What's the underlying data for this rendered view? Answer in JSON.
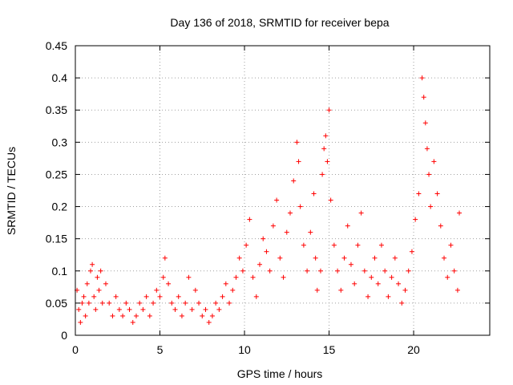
{
  "chart_data": {
    "type": "scatter",
    "title": "Day 136 of 2018, SRMTID for receiver bepa",
    "xlabel": "GPS time / hours",
    "ylabel": "SRMTID / TECUs",
    "xlim": [
      0,
      24.5
    ],
    "ylim": [
      0,
      0.45
    ],
    "xticks": [
      0,
      5,
      10,
      15,
      20
    ],
    "xtick_labels": [
      "0",
      "5",
      "10",
      "15",
      "20"
    ],
    "yticks": [
      0,
      0.05,
      0.1,
      0.15,
      0.2,
      0.25,
      0.3,
      0.35,
      0.4,
      0.45
    ],
    "ytick_labels": [
      "0",
      "0.05",
      "0.1",
      "0.15",
      "0.2",
      "0.25",
      "0.3",
      "0.35",
      "0.4",
      "0.45"
    ],
    "grid": true,
    "marker": "plus",
    "color": "#ff0000",
    "series": [
      {
        "name": "SRMTID",
        "points": [
          [
            0.1,
            0.07
          ],
          [
            0.2,
            0.04
          ],
          [
            0.3,
            0.02
          ],
          [
            0.4,
            0.05
          ],
          [
            0.5,
            0.06
          ],
          [
            0.6,
            0.03
          ],
          [
            0.7,
            0.08
          ],
          [
            0.8,
            0.05
          ],
          [
            0.9,
            0.1
          ],
          [
            1.0,
            0.11
          ],
          [
            1.1,
            0.06
          ],
          [
            1.2,
            0.04
          ],
          [
            1.3,
            0.09
          ],
          [
            1.4,
            0.07
          ],
          [
            1.5,
            0.1
          ],
          [
            1.6,
            0.05
          ],
          [
            1.8,
            0.08
          ],
          [
            2.0,
            0.05
          ],
          [
            2.2,
            0.03
          ],
          [
            2.4,
            0.06
          ],
          [
            2.6,
            0.04
          ],
          [
            2.8,
            0.03
          ],
          [
            3.0,
            0.05
          ],
          [
            3.2,
            0.04
          ],
          [
            3.4,
            0.02
          ],
          [
            3.6,
            0.03
          ],
          [
            3.8,
            0.05
          ],
          [
            4.0,
            0.04
          ],
          [
            4.2,
            0.06
          ],
          [
            4.4,
            0.03
          ],
          [
            4.6,
            0.05
          ],
          [
            4.8,
            0.07
          ],
          [
            5.0,
            0.06
          ],
          [
            5.2,
            0.09
          ],
          [
            5.3,
            0.12
          ],
          [
            5.5,
            0.08
          ],
          [
            5.7,
            0.05
          ],
          [
            5.9,
            0.04
          ],
          [
            6.1,
            0.06
          ],
          [
            6.3,
            0.03
          ],
          [
            6.5,
            0.05
          ],
          [
            6.7,
            0.09
          ],
          [
            6.9,
            0.04
          ],
          [
            7.1,
            0.07
          ],
          [
            7.3,
            0.05
          ],
          [
            7.5,
            0.03
          ],
          [
            7.7,
            0.04
          ],
          [
            7.9,
            0.02
          ],
          [
            8.1,
            0.03
          ],
          [
            8.3,
            0.05
          ],
          [
            8.5,
            0.04
          ],
          [
            8.7,
            0.06
          ],
          [
            8.9,
            0.08
          ],
          [
            9.1,
            0.05
          ],
          [
            9.3,
            0.07
          ],
          [
            9.5,
            0.09
          ],
          [
            9.7,
            0.12
          ],
          [
            9.9,
            0.1
          ],
          [
            10.1,
            0.14
          ],
          [
            10.3,
            0.18
          ],
          [
            10.5,
            0.09
          ],
          [
            10.7,
            0.06
          ],
          [
            10.9,
            0.11
          ],
          [
            11.1,
            0.15
          ],
          [
            11.3,
            0.13
          ],
          [
            11.5,
            0.1
          ],
          [
            11.7,
            0.17
          ],
          [
            11.9,
            0.21
          ],
          [
            12.1,
            0.12
          ],
          [
            12.3,
            0.09
          ],
          [
            12.5,
            0.16
          ],
          [
            12.7,
            0.19
          ],
          [
            12.9,
            0.24
          ],
          [
            13.1,
            0.3
          ],
          [
            13.2,
            0.27
          ],
          [
            13.3,
            0.2
          ],
          [
            13.5,
            0.14
          ],
          [
            13.7,
            0.1
          ],
          [
            13.9,
            0.16
          ],
          [
            14.1,
            0.22
          ],
          [
            14.2,
            0.12
          ],
          [
            14.3,
            0.07
          ],
          [
            14.5,
            0.1
          ],
          [
            14.6,
            0.25
          ],
          [
            14.7,
            0.29
          ],
          [
            14.8,
            0.31
          ],
          [
            14.9,
            0.27
          ],
          [
            15.0,
            0.35
          ],
          [
            15.1,
            0.21
          ],
          [
            15.3,
            0.14
          ],
          [
            15.5,
            0.1
          ],
          [
            15.7,
            0.07
          ],
          [
            15.9,
            0.12
          ],
          [
            16.1,
            0.17
          ],
          [
            16.3,
            0.11
          ],
          [
            16.5,
            0.08
          ],
          [
            16.7,
            0.14
          ],
          [
            16.9,
            0.19
          ],
          [
            17.1,
            0.1
          ],
          [
            17.3,
            0.06
          ],
          [
            17.5,
            0.09
          ],
          [
            17.7,
            0.12
          ],
          [
            17.9,
            0.08
          ],
          [
            18.1,
            0.14
          ],
          [
            18.3,
            0.1
          ],
          [
            18.5,
            0.06
          ],
          [
            18.7,
            0.09
          ],
          [
            18.9,
            0.12
          ],
          [
            19.1,
            0.08
          ],
          [
            19.3,
            0.05
          ],
          [
            19.5,
            0.07
          ],
          [
            19.7,
            0.1
          ],
          [
            19.9,
            0.13
          ],
          [
            20.1,
            0.18
          ],
          [
            20.3,
            0.22
          ],
          [
            20.5,
            0.4
          ],
          [
            20.6,
            0.37
          ],
          [
            20.7,
            0.33
          ],
          [
            20.8,
            0.29
          ],
          [
            20.9,
            0.25
          ],
          [
            21.0,
            0.2
          ],
          [
            21.2,
            0.27
          ],
          [
            21.4,
            0.22
          ],
          [
            21.6,
            0.17
          ],
          [
            21.8,
            0.12
          ],
          [
            22.0,
            0.09
          ],
          [
            22.2,
            0.14
          ],
          [
            22.4,
            0.1
          ],
          [
            22.6,
            0.07
          ],
          [
            22.7,
            0.19
          ]
        ]
      }
    ]
  }
}
